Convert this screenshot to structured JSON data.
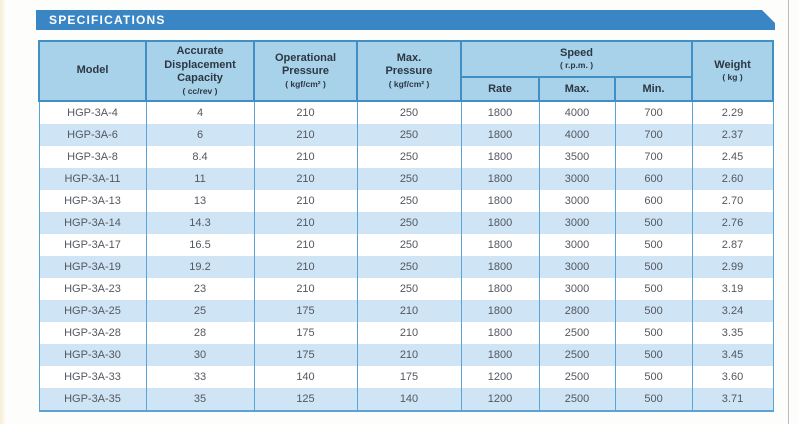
{
  "banner": {
    "title": "SPECIFICATIONS"
  },
  "colors": {
    "banner_blue": "#3a86c4",
    "header_bg": "#a8d2ea",
    "header_border": "#4090c6",
    "stripe_blue": "#cfe4f4",
    "data_border": "#5aa3d4",
    "header_text": "#2c3743",
    "data_text": "#53585f",
    "page_bg": "#fdfdfc",
    "page_edge_cream": "#f5eed2",
    "page_frame_line": "#b7bdc3"
  },
  "table": {
    "column_keys": [
      "model",
      "capacity",
      "operational_pressure",
      "max_pressure",
      "speed_rate",
      "speed_max",
      "speed_min",
      "weight"
    ],
    "header": {
      "model": "Model",
      "capacity": "Accurate\nDisplacement\nCapacity",
      "capacity_unit": "( cc/rev )",
      "operational_pressure": "Operational\nPressure",
      "operational_pressure_unit": "( kgf/cm² )",
      "max_pressure": "Max.\nPressure",
      "max_pressure_unit": "( kgf/cm² )",
      "speed": "Speed",
      "speed_unit": "( r.p.m. )",
      "rate": "Rate",
      "max": "Max.",
      "min": "Min.",
      "weight": "Weight",
      "weight_unit": "( kg )"
    },
    "rows": [
      [
        "HGP-3A-4",
        "4",
        "210",
        "250",
        "1800",
        "4000",
        "700",
        "2.29"
      ],
      [
        "HGP-3A-6",
        "6",
        "210",
        "250",
        "1800",
        "4000",
        "700",
        "2.37"
      ],
      [
        "HGP-3A-8",
        "8.4",
        "210",
        "250",
        "1800",
        "3500",
        "700",
        "2.45"
      ],
      [
        "HGP-3A-11",
        "11",
        "210",
        "250",
        "1800",
        "3000",
        "600",
        "2.60"
      ],
      [
        "HGP-3A-13",
        "13",
        "210",
        "250",
        "1800",
        "3000",
        "600",
        "2.70"
      ],
      [
        "HGP-3A-14",
        "14.3",
        "210",
        "250",
        "1800",
        "3000",
        "500",
        "2.76"
      ],
      [
        "HGP-3A-17",
        "16.5",
        "210",
        "250",
        "1800",
        "3000",
        "500",
        "2.87"
      ],
      [
        "HGP-3A-19",
        "19.2",
        "210",
        "250",
        "1800",
        "3000",
        "500",
        "2.99"
      ],
      [
        "HGP-3A-23",
        "23",
        "210",
        "250",
        "1800",
        "3000",
        "500",
        "3.19"
      ],
      [
        "HGP-3A-25",
        "25",
        "175",
        "210",
        "1800",
        "2800",
        "500",
        "3.24"
      ],
      [
        "HGP-3A-28",
        "28",
        "175",
        "210",
        "1800",
        "2500",
        "500",
        "3.35"
      ],
      [
        "HGP-3A-30",
        "30",
        "175",
        "210",
        "1800",
        "2500",
        "500",
        "3.45"
      ],
      [
        "HGP-3A-33",
        "33",
        "140",
        "175",
        "1200",
        "2500",
        "500",
        "3.60"
      ],
      [
        "HGP-3A-35",
        "35",
        "125",
        "140",
        "1200",
        "2500",
        "500",
        "3.71"
      ]
    ]
  }
}
